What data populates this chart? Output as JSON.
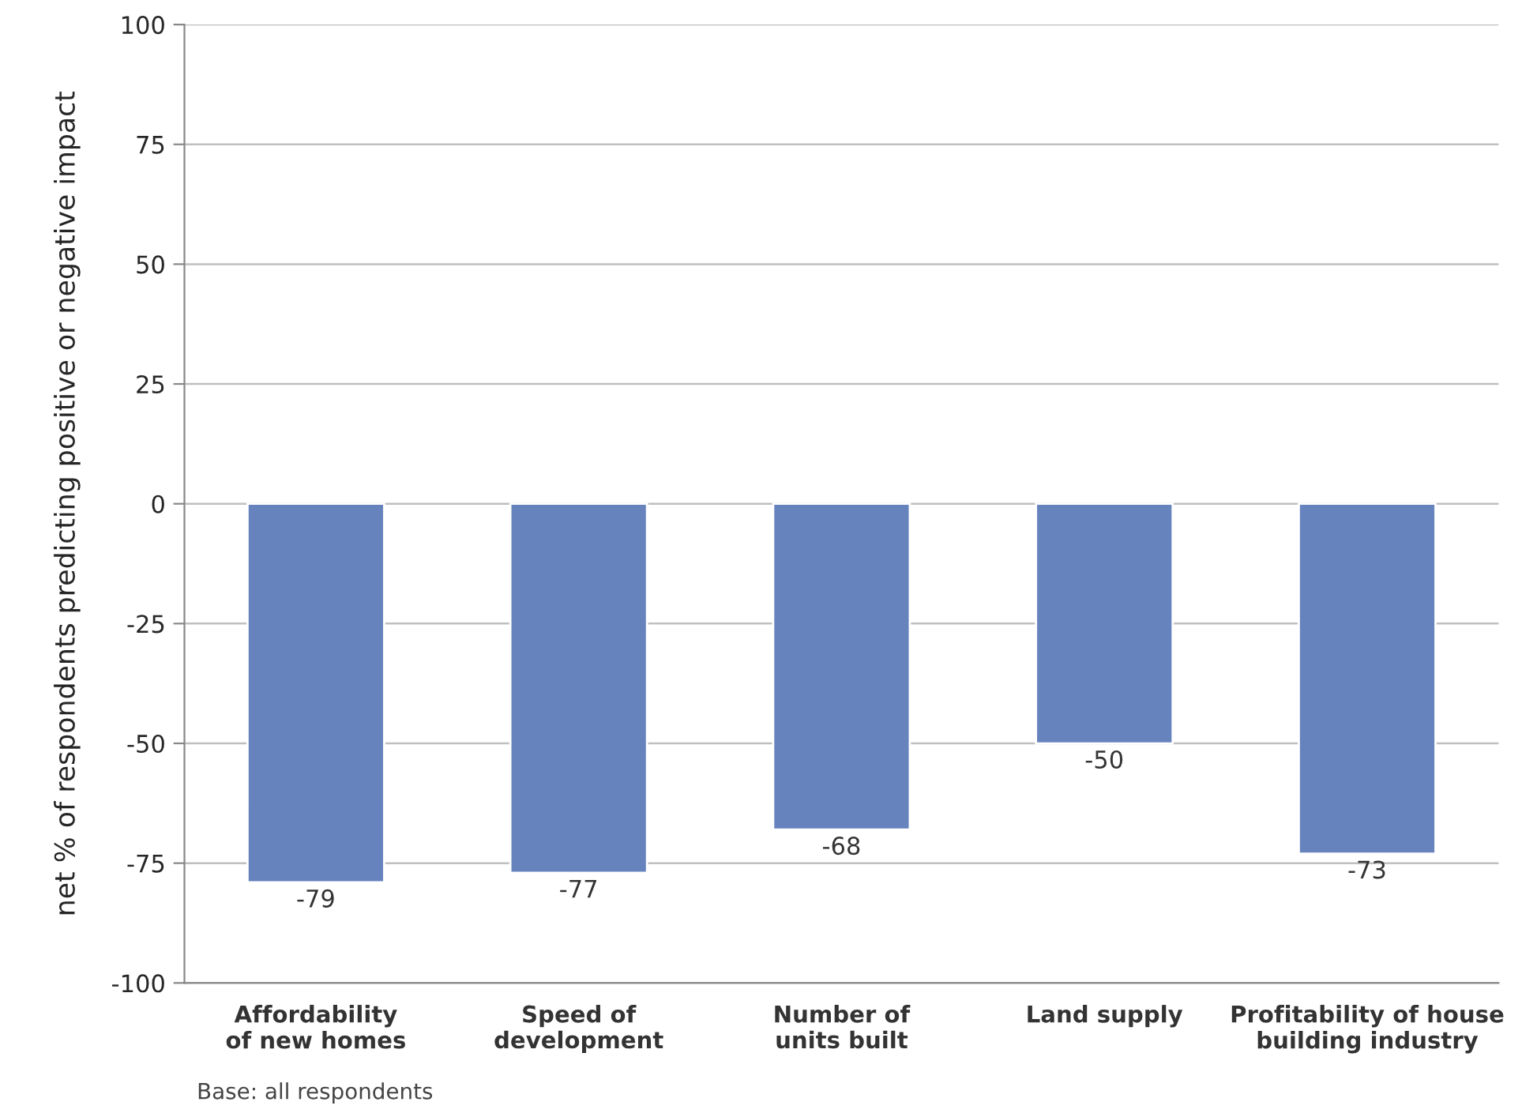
{
  "chart_data": {
    "type": "bar",
    "ylabel": "net % of respondents predicting positive or negative impact",
    "categories": [
      "Affordability\nof new homes",
      "Speed of\ndevelopment",
      "Number of\nunits built",
      "Land supply",
      "Profitability of house\nbuilding industry"
    ],
    "values": [
      -79,
      -77,
      -68,
      -50,
      -73
    ],
    "color": "#6783bd",
    "ylim": [
      -100,
      100
    ],
    "yticks": [
      -100,
      -75,
      -50,
      -25,
      0,
      25,
      50,
      75,
      100
    ],
    "grid": "y",
    "data_labels": true,
    "annotations": [
      "Base: all respondents"
    ]
  }
}
